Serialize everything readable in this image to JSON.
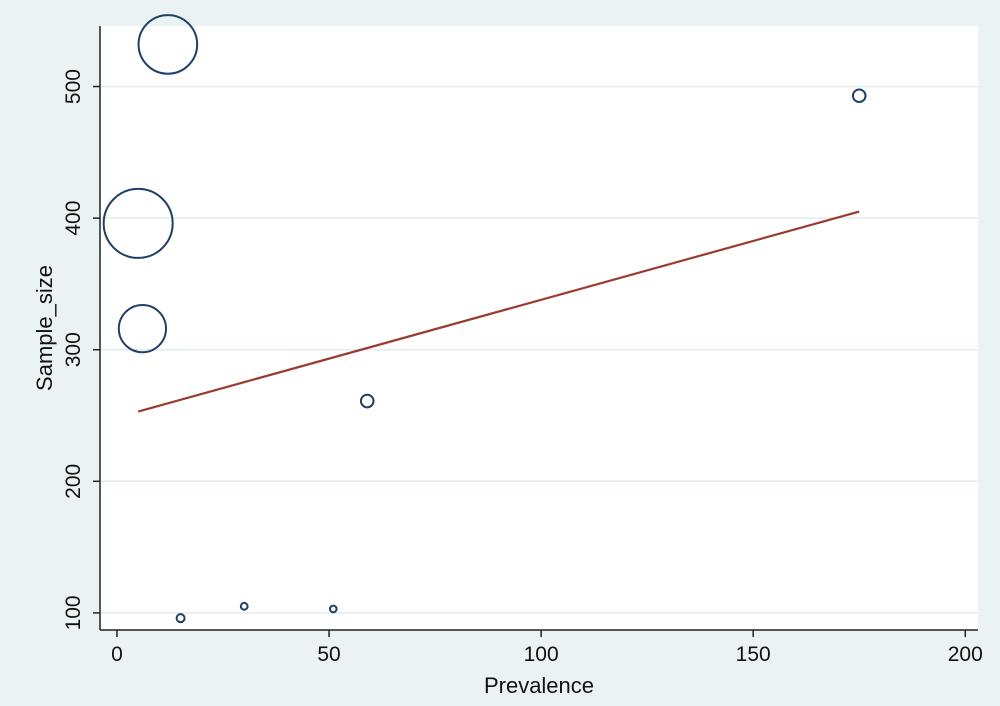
{
  "chart_data": {
    "type": "scatter",
    "xlabel": "Prevalence",
    "ylabel": "Sample_size",
    "xlim": [
      -4,
      203
    ],
    "ylim": [
      87,
      546
    ],
    "xticks": [
      0,
      50,
      100,
      150,
      200
    ],
    "yticks": [
      100,
      200,
      300,
      400,
      500
    ],
    "grid": "horizontal",
    "points": [
      {
        "x": 12,
        "y": 532,
        "weight": 6.5
      },
      {
        "x": 175,
        "y": 493,
        "weight": 0.3
      },
      {
        "x": 5,
        "y": 396,
        "weight": 9.0
      },
      {
        "x": 6,
        "y": 316,
        "weight": 4.2
      },
      {
        "x": 59,
        "y": 261,
        "weight": 0.3
      },
      {
        "x": 15,
        "y": 96,
        "weight": 0.12
      },
      {
        "x": 30,
        "y": 105,
        "weight": 0.09
      },
      {
        "x": 51,
        "y": 103,
        "weight": 0.08
      }
    ],
    "fit_line": {
      "x": [
        5,
        175
      ],
      "y": [
        253,
        405
      ]
    },
    "colors": {
      "marker": "#1f3f66",
      "fit_line": "#9a3b32",
      "plot_background": "#ffffff",
      "grid": "#e2ecee",
      "page_background": "#eaf2f3"
    }
  }
}
